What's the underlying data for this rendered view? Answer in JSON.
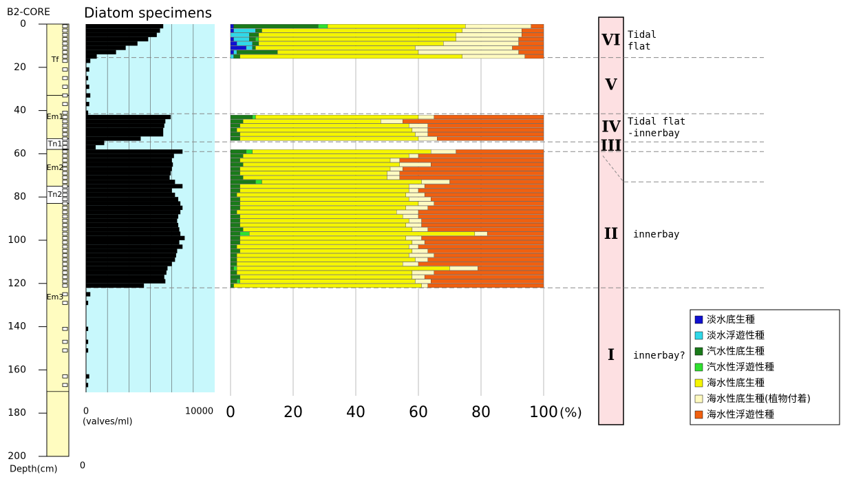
{
  "title": "B2-CORE",
  "depth_axis": {
    "label": "Depth(cm)",
    "ylim": [
      0,
      200
    ],
    "yticks": [
      0,
      20,
      40,
      60,
      80,
      100,
      120,
      140,
      160,
      180,
      200
    ]
  },
  "core": {
    "scale_label": "0",
    "units": [
      {
        "label": "Tf",
        "top": 0,
        "bottom": 33,
        "fill": "#fffcc0"
      },
      {
        "label": "Em1",
        "top": 33,
        "bottom": 53,
        "fill": "#fffcc0"
      },
      {
        "label": "Tn1",
        "top": 53,
        "bottom": 58,
        "fill": "#ffffff"
      },
      {
        "label": "Em2",
        "top": 58,
        "bottom": 75,
        "fill": "#fffcc0"
      },
      {
        "label": "Tn2",
        "top": 75,
        "bottom": 83,
        "fill": "#ffffff"
      },
      {
        "label": "Em3",
        "top": 83,
        "bottom": 170,
        "fill": "#fffcc0"
      }
    ]
  },
  "chart_data": [
    {
      "type": "bar",
      "orientation": "horizontal",
      "title": "Diatom specimens",
      "xlabel": "(valves/ml)",
      "color": "#000000",
      "background": "#c8f8fc",
      "y": [
        0,
        2,
        4,
        6,
        8,
        10,
        12,
        14,
        16,
        20,
        24,
        28,
        32,
        36,
        40,
        42,
        44,
        46,
        48,
        50,
        52,
        54,
        56,
        58,
        60,
        62,
        64,
        66,
        68,
        70,
        72,
        74,
        76,
        78,
        80,
        82,
        84,
        86,
        88,
        90,
        92,
        94,
        96,
        98,
        100,
        102,
        104,
        106,
        108,
        110,
        112,
        114,
        116,
        118,
        120,
        124,
        128,
        140,
        146,
        150,
        162,
        166
      ],
      "values": [
        7200,
        6900,
        6600,
        5800,
        4800,
        3700,
        2800,
        1000,
        400,
        300,
        200,
        300,
        400,
        300,
        200,
        7900,
        7400,
        7300,
        7200,
        7200,
        5100,
        1700,
        900,
        9000,
        8200,
        8000,
        8100,
        8000,
        7900,
        7800,
        8300,
        9000,
        8000,
        8300,
        8600,
        8800,
        9000,
        8800,
        8600,
        8500,
        8600,
        8700,
        8800,
        9200,
        8700,
        9000,
        8500,
        8400,
        8300,
        8000,
        7600,
        7500,
        7300,
        7400,
        5400,
        400,
        200,
        200,
        200,
        200,
        300,
        200
      ],
      "xlim": [
        0,
        12000
      ],
      "xticks": [
        0,
        10000
      ],
      "xgrid": [
        2000,
        4000,
        6000,
        8000,
        10000
      ]
    },
    {
      "type": "stacked_bar",
      "orientation": "horizontal",
      "xlabel": "(%)",
      "y": [
        0,
        2,
        4,
        6,
        8,
        10,
        12,
        14,
        42,
        44,
        46,
        48,
        50,
        52,
        58,
        60,
        62,
        64,
        66,
        68,
        70,
        72,
        74,
        76,
        78,
        80,
        82,
        84,
        86,
        88,
        90,
        92,
        94,
        96,
        98,
        100,
        102,
        104,
        106,
        108,
        110,
        112,
        114,
        116,
        118,
        120
      ],
      "xlim": [
        0,
        100
      ],
      "xticks": [
        0,
        20,
        40,
        60,
        80,
        100
      ],
      "grid": true,
      "legend": "bottom-right",
      "series": [
        {
          "name": "淡水底生種",
          "color": "#1010d0",
          "values": [
            1,
            1,
            0,
            1,
            2,
            5,
            1,
            0,
            0,
            0,
            0,
            0,
            0,
            0,
            0,
            0,
            0,
            0,
            0,
            0,
            0,
            0,
            0,
            0,
            0,
            0,
            0,
            0,
            0,
            0,
            0,
            0,
            0,
            0,
            0,
            0,
            0,
            0,
            0,
            0,
            0,
            0,
            0,
            0,
            0,
            0
          ]
        },
        {
          "name": "淡水浮遊性種",
          "color": "#30d8e8",
          "values": [
            0,
            7,
            6,
            5,
            5,
            2,
            1,
            1,
            0,
            0,
            0,
            0,
            0,
            0,
            0,
            0,
            0,
            0,
            0,
            0,
            0,
            0,
            0,
            0,
            0,
            0,
            0,
            0,
            0,
            0,
            0,
            0,
            0,
            0,
            0,
            0,
            0,
            0,
            0,
            0,
            0,
            0,
            0,
            0,
            0,
            0
          ]
        },
        {
          "name": "汽水性底生種",
          "color": "#1a7a1a",
          "values": [
            27,
            2,
            3,
            2,
            2,
            1,
            13,
            2,
            7,
            4,
            3,
            2,
            3,
            3,
            5,
            4,
            3,
            4,
            3,
            3,
            4,
            8,
            3,
            3,
            2,
            3,
            3,
            3,
            2,
            3,
            3,
            3,
            4,
            3,
            3,
            3,
            2,
            3,
            2,
            2,
            2,
            1,
            2,
            3,
            2,
            1
          ]
        },
        {
          "name": "汽水性浮遊性種",
          "color": "#30e030",
          "values": [
            3,
            0,
            0,
            1,
            0,
            0,
            0,
            0,
            1,
            0,
            0,
            0,
            0,
            0,
            2,
            0,
            0,
            0,
            0,
            0,
            0,
            2,
            0,
            0,
            0,
            0,
            0,
            0,
            0,
            0,
            0,
            0,
            0,
            3,
            0,
            0,
            0,
            0,
            0,
            0,
            0,
            1,
            0,
            0,
            1,
            0
          ]
        },
        {
          "name": "海水性底生種",
          "color": "#f5f500",
          "values": [
            44,
            64,
            63,
            63,
            59,
            51,
            45,
            71,
            52,
            44,
            54,
            56,
            56,
            57,
            57,
            53,
            48,
            50,
            48,
            47,
            46,
            51,
            54,
            54,
            54,
            54,
            57,
            53,
            51,
            52,
            54,
            53,
            54,
            72,
            53,
            55,
            55,
            55,
            55,
            57,
            53,
            68,
            56,
            55,
            56,
            60
          ]
        },
        {
          "name": "海水性底生種(植物付着)",
          "color": "#fffac0",
          "values": [
            21,
            19,
            21,
            20,
            24,
            31,
            32,
            20,
            5,
            7,
            6,
            5,
            4,
            6,
            8,
            3,
            3,
            10,
            4,
            4,
            4,
            9,
            5,
            3,
            6,
            7,
            5,
            7,
            7,
            5,
            4,
            5,
            5,
            4,
            5,
            4,
            3,
            5,
            8,
            4,
            5,
            9,
            7,
            4,
            5,
            2
          ]
        },
        {
          "name": "海水性浮遊性種",
          "color": "#f06010",
          "values": [
            4,
            7,
            7,
            8,
            8,
            10,
            8,
            6,
            35,
            45,
            37,
            37,
            37,
            34,
            28,
            40,
            46,
            36,
            45,
            46,
            46,
            30,
            38,
            40,
            38,
            36,
            35,
            37,
            40,
            40,
            39,
            39,
            37,
            18,
            39,
            38,
            40,
            37,
            35,
            37,
            40,
            21,
            35,
            38,
            36,
            37
          ]
        }
      ]
    }
  ],
  "zones": [
    {
      "name": "VI",
      "top": 0,
      "bottom": 15.5,
      "env": [
        "Tidal",
        "flat"
      ]
    },
    {
      "name": "V",
      "top": 15.5,
      "bottom": 41.5,
      "env": []
    },
    {
      "name": "IV",
      "top": 41.5,
      "bottom": 54.5,
      "env": [
        "Tidal flat",
        "-innerbay"
      ]
    },
    {
      "name": "III",
      "top": 54.5,
      "bottom": 59,
      "env": []
    },
    {
      "name": "II",
      "top": 73,
      "bottom": 122,
      "env": [
        "innerbay"
      ]
    },
    {
      "name": "I",
      "top": 122,
      "env": [
        "innerbay?"
      ]
    }
  ]
}
